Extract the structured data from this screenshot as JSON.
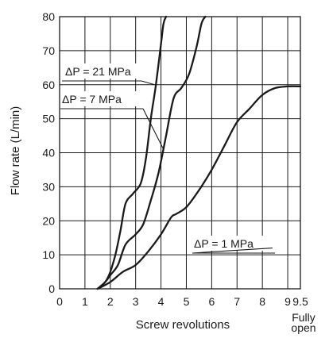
{
  "chart_data": {
    "type": "line",
    "xlabel": "Screw revolutions",
    "ylabel": "Flow rate (L/min)",
    "xlim": [
      0,
      9.5
    ],
    "ylim": [
      0,
      80
    ],
    "x_ticks": [
      "0",
      "1",
      "2",
      "3",
      "4",
      "5",
      "6",
      "7",
      "8",
      "9",
      "9.5"
    ],
    "y_ticks": [
      "0",
      "10",
      "20",
      "30",
      "40",
      "50",
      "60",
      "70",
      "80"
    ],
    "x_extra_label": [
      "Fully",
      "open"
    ],
    "grid": true,
    "series": [
      {
        "name": "ΔP = 21 MPa",
        "x": [
          1.5,
          1.8,
          2.0,
          2.2,
          2.4,
          2.6,
          2.9,
          3.2,
          3.4,
          3.6,
          3.8,
          4.0,
          4.1,
          4.2
        ],
        "y": [
          0,
          2,
          5,
          10,
          17,
          25,
          28,
          31,
          38,
          50,
          60,
          72,
          78,
          80
        ]
      },
      {
        "name": "ΔP = 7 MPa",
        "x": [
          1.5,
          1.8,
          2.0,
          2.3,
          2.6,
          3.0,
          3.3,
          3.6,
          3.9,
          4.2,
          4.5,
          4.8,
          5.1,
          5.4,
          5.6,
          5.75
        ],
        "y": [
          0,
          2,
          4,
          7,
          13,
          16,
          19,
          26,
          34,
          45,
          56,
          59,
          63,
          71,
          78,
          80
        ]
      },
      {
        "name": "ΔP = 1 MPa",
        "x": [
          1.5,
          2.0,
          2.5,
          3.0,
          3.5,
          4.0,
          4.4,
          4.6,
          5.0,
          5.5,
          6.0,
          6.5,
          7.0,
          7.5,
          8.0,
          8.5,
          9.0,
          9.5
        ],
        "y": [
          0,
          2,
          5,
          7,
          11,
          16,
          21,
          22,
          24,
          29,
          35,
          42,
          49,
          53,
          57,
          59,
          59.5,
          59.5
        ]
      }
    ],
    "annotations": [
      {
        "text": "ΔP = 21 MPa",
        "series": 0,
        "x": 3.75,
        "y": 60
      },
      {
        "text": "ΔP = 7 MPa",
        "series": 1,
        "x": 4.1,
        "y": 41
      },
      {
        "text": "ΔP = 1 MPa",
        "series": 2,
        "x": 8.4,
        "y": 12
      }
    ],
    "colors": {
      "line": "#1a1a1a",
      "grid": "#1a1a1a",
      "background": "#ffffff"
    }
  }
}
